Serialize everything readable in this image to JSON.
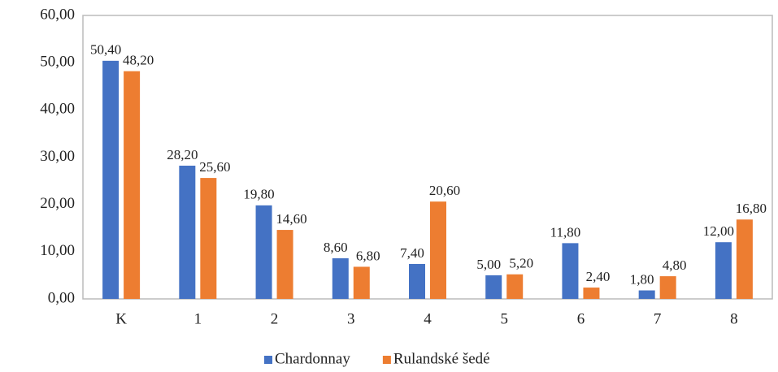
{
  "chart_data": {
    "type": "bar",
    "categories": [
      "K",
      "1",
      "2",
      "3",
      "4",
      "5",
      "6",
      "7",
      "8"
    ],
    "series": [
      {
        "name": "Chardonnay",
        "color": "#4472c4",
        "values": [
          50.4,
          28.2,
          19.8,
          8.6,
          7.4,
          5.0,
          11.8,
          1.8,
          12.0
        ],
        "value_labels": [
          "50,40",
          "28,20",
          "19,80",
          "8,60",
          "7,40",
          "5,00",
          "11,80",
          "1,80",
          "12,00"
        ]
      },
      {
        "name": "Rulandské šedé",
        "color": "#ed7d31",
        "values": [
          48.2,
          25.6,
          14.6,
          6.8,
          20.6,
          5.2,
          2.4,
          4.8,
          16.8
        ],
        "value_labels": [
          "48,20",
          "25,60",
          "14,60",
          "6,80",
          "20,60",
          "5,20",
          "2,40",
          "4,80",
          "16,80"
        ]
      }
    ],
    "ylim": [
      0,
      60
    ],
    "yticks": [
      {
        "value": 0,
        "label": "0,00"
      },
      {
        "value": 10,
        "label": "10,00"
      },
      {
        "value": 20,
        "label": "20,00"
      },
      {
        "value": 30,
        "label": "30,00"
      },
      {
        "value": 40,
        "label": "40,00"
      },
      {
        "value": 50,
        "label": "50,00"
      },
      {
        "value": 60,
        "label": "60,00"
      }
    ],
    "legend": "bottom"
  }
}
